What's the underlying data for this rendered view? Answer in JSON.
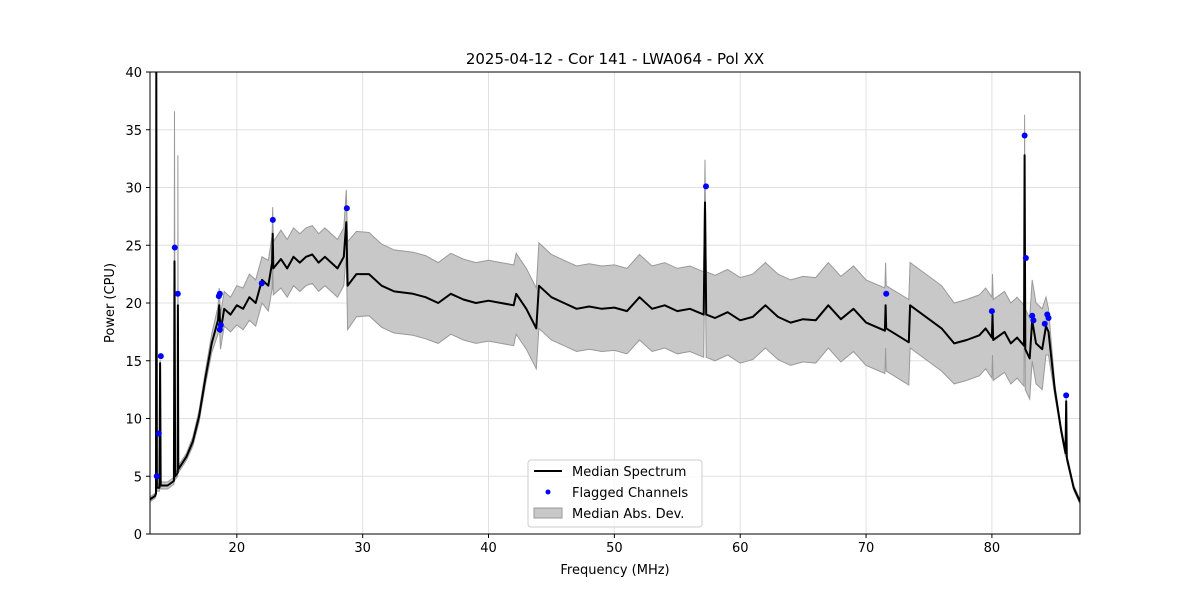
{
  "chart_data": {
    "type": "line",
    "title": "2025-04-12 - Cor 141 - LWA064 - Pol XX",
    "xlabel": "Frequency (MHz)",
    "ylabel": "Power (CPU)",
    "xlim": [
      13.1,
      87.0
    ],
    "ylim": [
      0,
      40
    ],
    "xticks": [
      20,
      30,
      40,
      50,
      60,
      70,
      80
    ],
    "yticks": [
      0,
      5,
      10,
      15,
      20,
      25,
      30,
      35,
      40
    ],
    "grid": true,
    "legend_position": "bottom-center",
    "legend": [
      "Median Spectrum",
      "Flagged Channels",
      "Median Abs. Dev."
    ],
    "colors": {
      "median": "#000000",
      "flagged": "#0000ff",
      "mad": "#c8c8c8",
      "mad_edge": "#999999"
    },
    "series": {
      "name": "Median Spectrum",
      "points_x_y_mad": [
        [
          13.1,
          3.0,
          0.2
        ],
        [
          13.5,
          3.3,
          0.2
        ],
        [
          13.58,
          3.5,
          0.2
        ],
        [
          13.6,
          40,
          0
        ],
        [
          13.65,
          4,
          0.3
        ],
        [
          13.85,
          4,
          0.3
        ],
        [
          13.9,
          14.8,
          0.3
        ],
        [
          13.95,
          4.2,
          0.3
        ],
        [
          14.5,
          4.2,
          0.3
        ],
        [
          15.0,
          4.6,
          0.3
        ],
        [
          15.05,
          23.6,
          13
        ],
        [
          15.1,
          5,
          0.3
        ],
        [
          15.3,
          5.3,
          0.3
        ],
        [
          15.32,
          19.8,
          13
        ],
        [
          15.35,
          5.6,
          0.3
        ],
        [
          16,
          6.7,
          0.3
        ],
        [
          16.5,
          8,
          0.4
        ],
        [
          17,
          10.2,
          0.5
        ],
        [
          17.5,
          13.5,
          0.6
        ],
        [
          18,
          16.5,
          0.8
        ],
        [
          18.5,
          18.5,
          1.2
        ],
        [
          18.6,
          19.8,
          1.5
        ],
        [
          18.7,
          17.5,
          1.5
        ],
        [
          19,
          19.5,
          1.5
        ],
        [
          19.5,
          19,
          1.5
        ],
        [
          20,
          19.8,
          1.7
        ],
        [
          20.5,
          19.5,
          1.8
        ],
        [
          21,
          20.5,
          2
        ],
        [
          21.5,
          20,
          2
        ],
        [
          22,
          22,
          2
        ],
        [
          22.5,
          21.5,
          2.2
        ],
        [
          22.8,
          23.5,
          2.3
        ],
        [
          22.85,
          26,
          2.3
        ],
        [
          22.9,
          23,
          2.3
        ],
        [
          23.5,
          23.8,
          2.5
        ],
        [
          24,
          23,
          2.5
        ],
        [
          24.5,
          24,
          2.5
        ],
        [
          25,
          23.5,
          2.5
        ],
        [
          25.5,
          24,
          2.5
        ],
        [
          26,
          24.2,
          2.5
        ],
        [
          26.5,
          23.5,
          2.5
        ],
        [
          27,
          24,
          2.5
        ],
        [
          27.5,
          23.5,
          2.5
        ],
        [
          28,
          23,
          2.5
        ],
        [
          28.5,
          24,
          2.5
        ],
        [
          28.7,
          27,
          2.8
        ],
        [
          28.8,
          21.5,
          3.8
        ],
        [
          29.5,
          22.5,
          3.7
        ],
        [
          30.5,
          22.5,
          3.6
        ],
        [
          31.5,
          21.5,
          3.6
        ],
        [
          32.5,
          21,
          3.6
        ],
        [
          34,
          20.8,
          3.6
        ],
        [
          35,
          20.5,
          3.6
        ],
        [
          36,
          20,
          3.5
        ],
        [
          37,
          20.8,
          3.5
        ],
        [
          38,
          20.3,
          3.5
        ],
        [
          39,
          20,
          3.5
        ],
        [
          40,
          20.2,
          3.5
        ],
        [
          41,
          20,
          3.5
        ],
        [
          42,
          19.8,
          3.5
        ],
        [
          42.2,
          20.8,
          3.5
        ],
        [
          43,
          19.5,
          3.5
        ],
        [
          43.8,
          17.8,
          3.5
        ],
        [
          44,
          21.5,
          3.7
        ],
        [
          45,
          20.5,
          3.7
        ],
        [
          46,
          20,
          3.7
        ],
        [
          47,
          19.5,
          3.7
        ],
        [
          48,
          19.7,
          3.7
        ],
        [
          49,
          19.5,
          3.7
        ],
        [
          50,
          19.6,
          3.7
        ],
        [
          51,
          19.3,
          3.7
        ],
        [
          52,
          20.5,
          3.7
        ],
        [
          53,
          19.5,
          3.7
        ],
        [
          54,
          19.8,
          3.7
        ],
        [
          55,
          19.3,
          3.7
        ],
        [
          56,
          19.5,
          3.7
        ],
        [
          57.1,
          19,
          3.7
        ],
        [
          57.2,
          28.7,
          3.7
        ],
        [
          57.3,
          19,
          3.7
        ],
        [
          58,
          18.7,
          3.7
        ],
        [
          59,
          19.2,
          3.7
        ],
        [
          60,
          18.5,
          3.7
        ],
        [
          61,
          18.8,
          3.7
        ],
        [
          62,
          19.8,
          3.7
        ],
        [
          63,
          18.8,
          3.7
        ],
        [
          64,
          18.3,
          3.7
        ],
        [
          65,
          18.6,
          3.7
        ],
        [
          66,
          18.5,
          3.7
        ],
        [
          67,
          19.8,
          3.7
        ],
        [
          68,
          18.6,
          3.7
        ],
        [
          69,
          19.5,
          3.7
        ],
        [
          70,
          18.3,
          3.7
        ],
        [
          71.5,
          17.6,
          3.7
        ],
        [
          71.55,
          19.8,
          3.7
        ],
        [
          71.6,
          17.8,
          3.7
        ],
        [
          73.4,
          16.6,
          3.7
        ],
        [
          73.5,
          19.8,
          3.7
        ],
        [
          75,
          18.6,
          3.7
        ],
        [
          76,
          17.8,
          3.7
        ],
        [
          77,
          16.5,
          3.5
        ],
        [
          78,
          16.8,
          3.5
        ],
        [
          79,
          17.2,
          3.5
        ],
        [
          79.5,
          17.8,
          3.5
        ],
        [
          80,
          17,
          3.5
        ],
        [
          80.05,
          19,
          3.5
        ],
        [
          80.1,
          16.8,
          3.5
        ],
        [
          81,
          17.5,
          3.5
        ],
        [
          81.5,
          16.5,
          3.5
        ],
        [
          82,
          17,
          3.5
        ],
        [
          82.55,
          16.3,
          3.5
        ],
        [
          82.6,
          32.8,
          3.5
        ],
        [
          82.65,
          16,
          3.5
        ],
        [
          83,
          15.2,
          3.5
        ],
        [
          83.2,
          18.5,
          3.5
        ],
        [
          83.5,
          16.5,
          3.5
        ],
        [
          84,
          16,
          3.5
        ],
        [
          84.3,
          18,
          2.5
        ],
        [
          84.5,
          17.5,
          2
        ],
        [
          85,
          12.5,
          0.5
        ],
        [
          85.5,
          9,
          0.3
        ],
        [
          85.85,
          7,
          0.3
        ],
        [
          85.9,
          11.5,
          0.3
        ],
        [
          85.95,
          6.6,
          0.3
        ],
        [
          86.5,
          4,
          0.2
        ],
        [
          87,
          2.8,
          0.2
        ]
      ]
    },
    "flagged": {
      "name": "Flagged Channels",
      "x": [
        13.64,
        13.8,
        13.96,
        15.07,
        15.31,
        18.57,
        18.65,
        18.65,
        18.73,
        21.98,
        22.86,
        28.74,
        57.28,
        71.6,
        80.0,
        82.6,
        82.7,
        83.2,
        83.3,
        84.2,
        84.4,
        84.5,
        85.9
      ],
      "y": [
        5.0,
        8.7,
        15.4,
        24.8,
        20.8,
        20.6,
        20.8,
        17.7,
        18.1,
        21.7,
        27.2,
        28.2,
        30.1,
        20.8,
        19.3,
        34.5,
        23.9,
        18.9,
        18.5,
        18.2,
        19.0,
        18.7,
        12.0
      ]
    }
  }
}
